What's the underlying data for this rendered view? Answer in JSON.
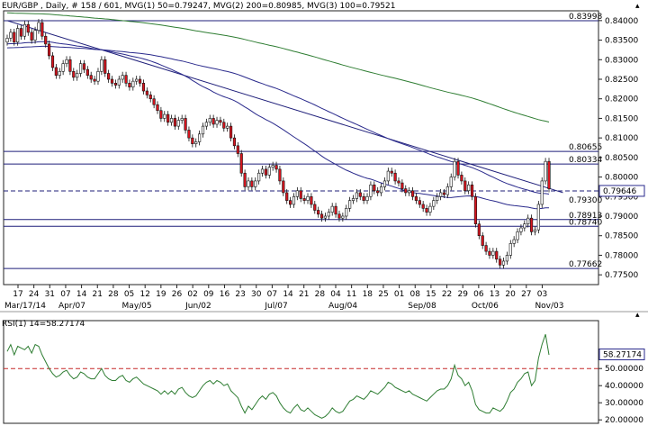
{
  "header": {
    "main_title": "EUR/GBP , Daily, # 158 / 601, MVG(1) 50=0.79247, MVG(2) 200=0.80985, MVG(3) 100=0.79521",
    "rsi_title": "RSI(1) 14=58.27174"
  },
  "colors": {
    "up_candle": "#ffffff",
    "down_candle": "#d8141e",
    "mvg50": "#2a2a8c",
    "mvg100": "#2a2a8c",
    "mvg200": "#2e7d32",
    "trendline": "#1f1f7a",
    "rsi_line": "#2e7d32",
    "rsi_ref": "#c62828",
    "last_price_box": "#2a2a8c"
  },
  "chart_data": [
    {
      "type": "candlestick",
      "title": "EUR/GBP , Daily",
      "ylim": [
        0.7725,
        0.8425
      ],
      "y_ticks": [
        "0.84000",
        "0.83500",
        "0.83000",
        "0.82500",
        "0.82000",
        "0.81500",
        "0.81000",
        "0.80500",
        "0.80000",
        "0.79500",
        "0.79000",
        "0.78500",
        "0.78000",
        "0.77500"
      ],
      "x_day_labels": [
        "17",
        "24",
        "31",
        "07",
        "14",
        "21",
        "28",
        "05",
        "12",
        "19",
        "26",
        "02",
        "09",
        "16",
        "23",
        "30",
        "07",
        "14",
        "21",
        "28",
        "04",
        "11",
        "18",
        "25",
        "01",
        "08",
        "15",
        "22",
        "29",
        "06",
        "13",
        "20",
        "27",
        "03"
      ],
      "x_month_labels": [
        {
          "text": "Mar/17/14",
          "week": 0
        },
        {
          "text": "Apr/07",
          "week": 3
        },
        {
          "text": "May/05",
          "week": 7
        },
        {
          "text": "Jun/02",
          "week": 11
        },
        {
          "text": "Jul/07",
          "week": 16
        },
        {
          "text": "Aug/04",
          "week": 20
        },
        {
          "text": "Sep/08",
          "week": 25
        },
        {
          "text": "Oct/06",
          "week": 29
        },
        {
          "text": "Nov/03",
          "week": 33
        }
      ],
      "price_labels": [
        {
          "text": "0.83998",
          "value": 0.83998
        },
        {
          "text": "0.80655",
          "value": 0.80655
        },
        {
          "text": "0.80334",
          "value": 0.80334
        },
        {
          "text": "0.79300",
          "value": 0.793
        },
        {
          "text": "0.78913",
          "value": 0.78913
        },
        {
          "text": "0.78740",
          "value": 0.7874
        },
        {
          "text": "0.77662",
          "value": 0.77662
        }
      ],
      "horizontal_lines": [
        {
          "value": 0.83998,
          "style": "solid"
        },
        {
          "value": 0.80655,
          "style": "solid"
        },
        {
          "value": 0.80334,
          "style": "solid"
        },
        {
          "value": 0.79646,
          "style": "dashed"
        },
        {
          "value": 0.78913,
          "style": "solid"
        },
        {
          "value": 0.7874,
          "style": "solid"
        },
        {
          "value": 0.77662,
          "style": "solid"
        }
      ],
      "last_price": {
        "text": "0.79646",
        "value": 0.79646
      },
      "trendline": {
        "from": {
          "index": 0,
          "value": 0.84
        },
        "to": {
          "index": 159,
          "value": 0.796
        }
      },
      "closes": [
        0.8355,
        0.837,
        0.8345,
        0.838,
        0.836,
        0.839,
        0.837,
        0.835,
        0.8375,
        0.8395,
        0.836,
        0.834,
        0.831,
        0.828,
        0.826,
        0.827,
        0.829,
        0.83,
        0.827,
        0.8255,
        0.8265,
        0.829,
        0.8275,
        0.826,
        0.825,
        0.8245,
        0.827,
        0.83,
        0.8265,
        0.825,
        0.824,
        0.8235,
        0.825,
        0.826,
        0.824,
        0.823,
        0.8245,
        0.825,
        0.824,
        0.822,
        0.821,
        0.82,
        0.8185,
        0.817,
        0.815,
        0.816,
        0.814,
        0.815,
        0.813,
        0.8145,
        0.815,
        0.812,
        0.81,
        0.8085,
        0.809,
        0.811,
        0.813,
        0.814,
        0.815,
        0.8135,
        0.8145,
        0.814,
        0.8125,
        0.813,
        0.81,
        0.808,
        0.806,
        0.801,
        0.7975,
        0.799,
        0.7975,
        0.799,
        0.801,
        0.802,
        0.8005,
        0.8025,
        0.803,
        0.802,
        0.799,
        0.796,
        0.794,
        0.793,
        0.795,
        0.7965,
        0.7945,
        0.794,
        0.795,
        0.793,
        0.7915,
        0.7905,
        0.7895,
        0.79,
        0.791,
        0.7925,
        0.7905,
        0.7895,
        0.79,
        0.792,
        0.794,
        0.7945,
        0.796,
        0.795,
        0.794,
        0.795,
        0.798,
        0.7965,
        0.796,
        0.7975,
        0.799,
        0.8015,
        0.801,
        0.799,
        0.7985,
        0.797,
        0.796,
        0.7965,
        0.795,
        0.794,
        0.793,
        0.792,
        0.791,
        0.7925,
        0.794,
        0.795,
        0.796,
        0.7955,
        0.7975,
        0.8,
        0.804,
        0.8005,
        0.799,
        0.7965,
        0.798,
        0.795,
        0.788,
        0.785,
        0.7825,
        0.781,
        0.78,
        0.781,
        0.779,
        0.7775,
        0.7785,
        0.78,
        0.783,
        0.784,
        0.786,
        0.787,
        0.788,
        0.7895,
        0.786,
        0.7865,
        0.793,
        0.799,
        0.804,
        0.797
      ]
    },
    {
      "type": "line",
      "title": "RSI(1) 14=58.27174",
      "ylim": [
        18,
        78
      ],
      "y_ticks": [
        {
          "text": "50.00000",
          "value": 50
        },
        {
          "text": "40.00000",
          "value": 40
        },
        {
          "text": "30.00000",
          "value": 30
        },
        {
          "text": "20.00000",
          "value": 20
        }
      ],
      "reference_line": {
        "value": 50,
        "style": "dashed"
      },
      "last_value": {
        "text": "58.27174",
        "value": 58.27174
      },
      "values": [
        60,
        64,
        58,
        63,
        62,
        61,
        63,
        59,
        64,
        63,
        58,
        54,
        50,
        47,
        45,
        46,
        48,
        49,
        46,
        44,
        45,
        48,
        47,
        45,
        44,
        44,
        47,
        50,
        46,
        44,
        43,
        43,
        45,
        46,
        43,
        42,
        44,
        45,
        43,
        41,
        40,
        39,
        38,
        37,
        35,
        37,
        35,
        37,
        35,
        38,
        39,
        36,
        34,
        33,
        34,
        37,
        40,
        42,
        43,
        41,
        43,
        42,
        40,
        41,
        37,
        35,
        33,
        28,
        24,
        28,
        26,
        29,
        32,
        34,
        32,
        35,
        36,
        34,
        30,
        27,
        25,
        24,
        27,
        29,
        26,
        25,
        27,
        25,
        23,
        22,
        21,
        22,
        24,
        27,
        25,
        24,
        25,
        28,
        31,
        32,
        34,
        33,
        32,
        34,
        37,
        36,
        35,
        37,
        39,
        42,
        41,
        39,
        38,
        37,
        36,
        37,
        35,
        34,
        33,
        32,
        31,
        33,
        35,
        37,
        38,
        38,
        40,
        44,
        52,
        46,
        44,
        40,
        42,
        37,
        29,
        26,
        25,
        24,
        24,
        27,
        26,
        25,
        27,
        31,
        36,
        38,
        42,
        44,
        47,
        48,
        40,
        43,
        56,
        64,
        70,
        58
      ]
    }
  ]
}
